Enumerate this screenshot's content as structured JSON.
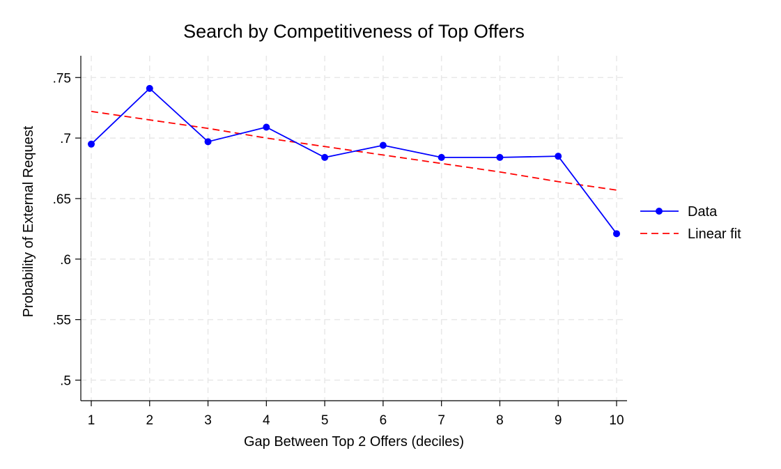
{
  "chart_data": {
    "type": "line",
    "title": "Search by Competitiveness of Top Offers",
    "xlabel": "Gap Between Top 2 Offers (deciles)",
    "ylabel": "Probability of External Request",
    "x": [
      1,
      2,
      3,
      4,
      5,
      6,
      7,
      8,
      9,
      10
    ],
    "xticks": [
      "1",
      "2",
      "3",
      "4",
      "5",
      "6",
      "7",
      "8",
      "9",
      "10"
    ],
    "yticks": [
      ".5",
      ".55",
      ".6",
      ".65",
      ".7",
      ".75"
    ],
    "ytick_values": [
      0.5,
      0.55,
      0.6,
      0.65,
      0.7,
      0.75
    ],
    "xlim": [
      1,
      10
    ],
    "ylim": [
      0.483,
      0.768
    ],
    "grid": true,
    "legend_position": "right",
    "series": [
      {
        "name": "Data",
        "style": "solid line with circle markers",
        "color": "#0000ff",
        "values": [
          0.695,
          0.741,
          0.697,
          0.709,
          0.684,
          0.694,
          0.684,
          0.684,
          0.685,
          0.621
        ]
      },
      {
        "name": "Linear fit",
        "style": "dashed line",
        "color": "#ff0000",
        "values": [
          0.722,
          0.715,
          0.708,
          0.7,
          0.693,
          0.686,
          0.679,
          0.672,
          0.664,
          0.657
        ]
      }
    ]
  }
}
